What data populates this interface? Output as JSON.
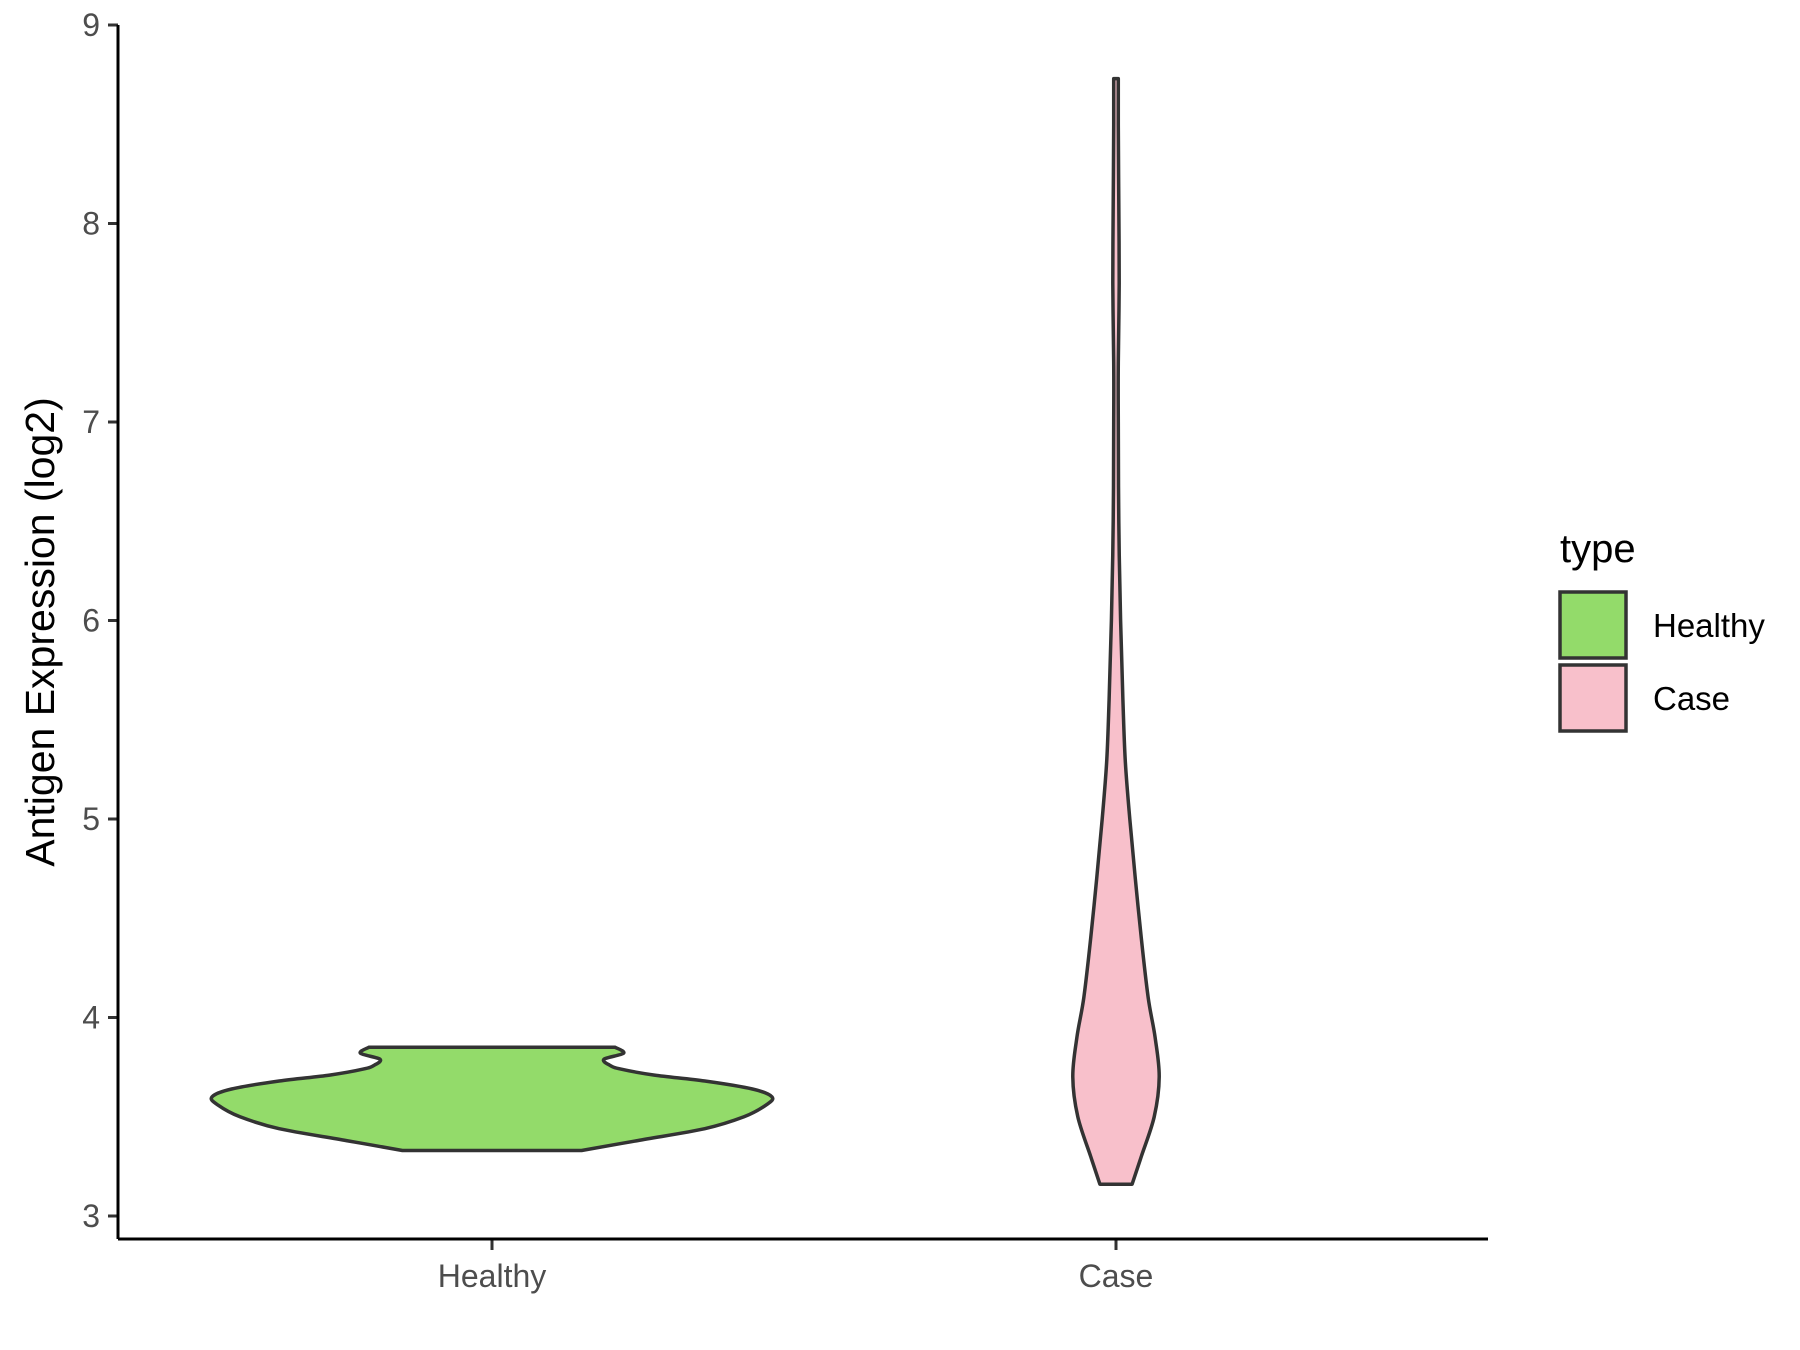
{
  "chart_data": {
    "type": "violin",
    "title": "",
    "xlabel": "",
    "ylabel": "Antigen Expression (log2)",
    "ylim": [
      2.88,
      9.0
    ],
    "yticks": [
      3,
      4,
      5,
      6,
      7,
      8,
      9
    ],
    "grid": false,
    "categories": [
      "Healthy",
      "Case"
    ],
    "legend": {
      "title": "type",
      "position": "right",
      "entries": [
        {
          "label": "Healthy",
          "color": "#93db6a"
        },
        {
          "label": "Case",
          "color": "#f8c0cb"
        }
      ]
    },
    "series": [
      {
        "name": "Healthy",
        "color": "#93db6a",
        "min": 3.33,
        "max": 3.85,
        "profile": [
          [
            3.33,
            0.32
          ],
          [
            3.38,
            0.52
          ],
          [
            3.44,
            0.76
          ],
          [
            3.5,
            0.9
          ],
          [
            3.56,
            0.98
          ],
          [
            3.6,
            1.0
          ],
          [
            3.64,
            0.93
          ],
          [
            3.68,
            0.76
          ],
          [
            3.71,
            0.58
          ],
          [
            3.74,
            0.46
          ],
          [
            3.76,
            0.42
          ],
          [
            3.79,
            0.4
          ],
          [
            3.82,
            0.47
          ],
          [
            3.85,
            0.44
          ]
        ]
      },
      {
        "name": "Case",
        "color": "#f8c0cb",
        "min": 3.16,
        "max": 8.73,
        "profile": [
          [
            3.16,
            0.35
          ],
          [
            3.3,
            0.55
          ],
          [
            3.5,
            0.83
          ],
          [
            3.7,
            0.94
          ],
          [
            3.9,
            0.85
          ],
          [
            4.1,
            0.7
          ],
          [
            4.4,
            0.55
          ],
          [
            4.7,
            0.42
          ],
          [
            5.0,
            0.3
          ],
          [
            5.3,
            0.2
          ],
          [
            5.6,
            0.15
          ],
          [
            6.0,
            0.1
          ],
          [
            6.5,
            0.06
          ],
          [
            7.0,
            0.05
          ],
          [
            7.3,
            0.05
          ],
          [
            7.7,
            0.07
          ],
          [
            8.1,
            0.06
          ],
          [
            8.5,
            0.05
          ],
          [
            8.73,
            0.05
          ]
        ]
      }
    ]
  }
}
